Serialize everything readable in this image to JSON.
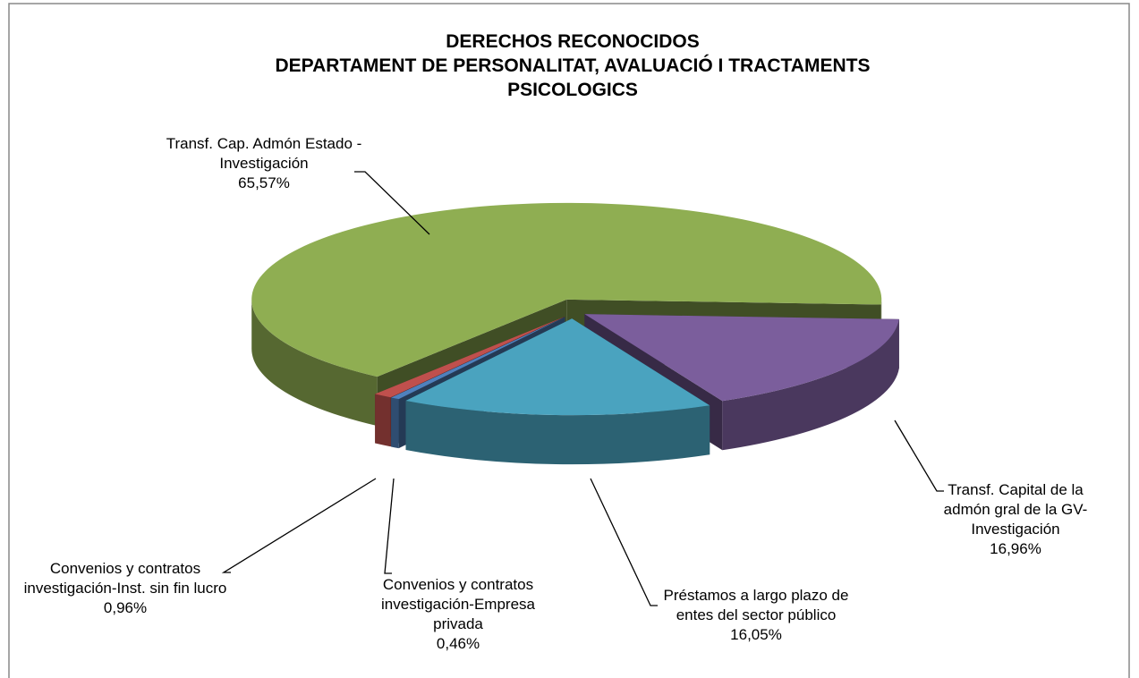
{
  "chart_data": {
    "type": "pie",
    "title": "DERECHOS RECONOCIDOS",
    "subtitle": "DEPARTAMENT DE PERSONALITAT, AVALUACIÓ I TRACTAMENTS PSICOLOGICS",
    "categories": [
      "Transf. Capital de la admón gral de la GV-Investigación",
      "Préstamos a largo plazo de entes del sector público",
      "Convenios y contratos investigación-Empresa privada",
      "Convenios y contratos investigación-Inst. sin fin lucro",
      "Transf. Cap. Admón Estado - Investigación"
    ],
    "values": [
      16.96,
      16.05,
      0.46,
      0.96,
      65.57
    ],
    "value_labels": [
      "16,96%",
      "16,05%",
      "0,46%",
      "0,96%",
      "65,57%"
    ],
    "colors": [
      "#7b5e9c",
      "#4aa3bf",
      "#4f81bd",
      "#c0504d",
      "#8fae52"
    ]
  }
}
